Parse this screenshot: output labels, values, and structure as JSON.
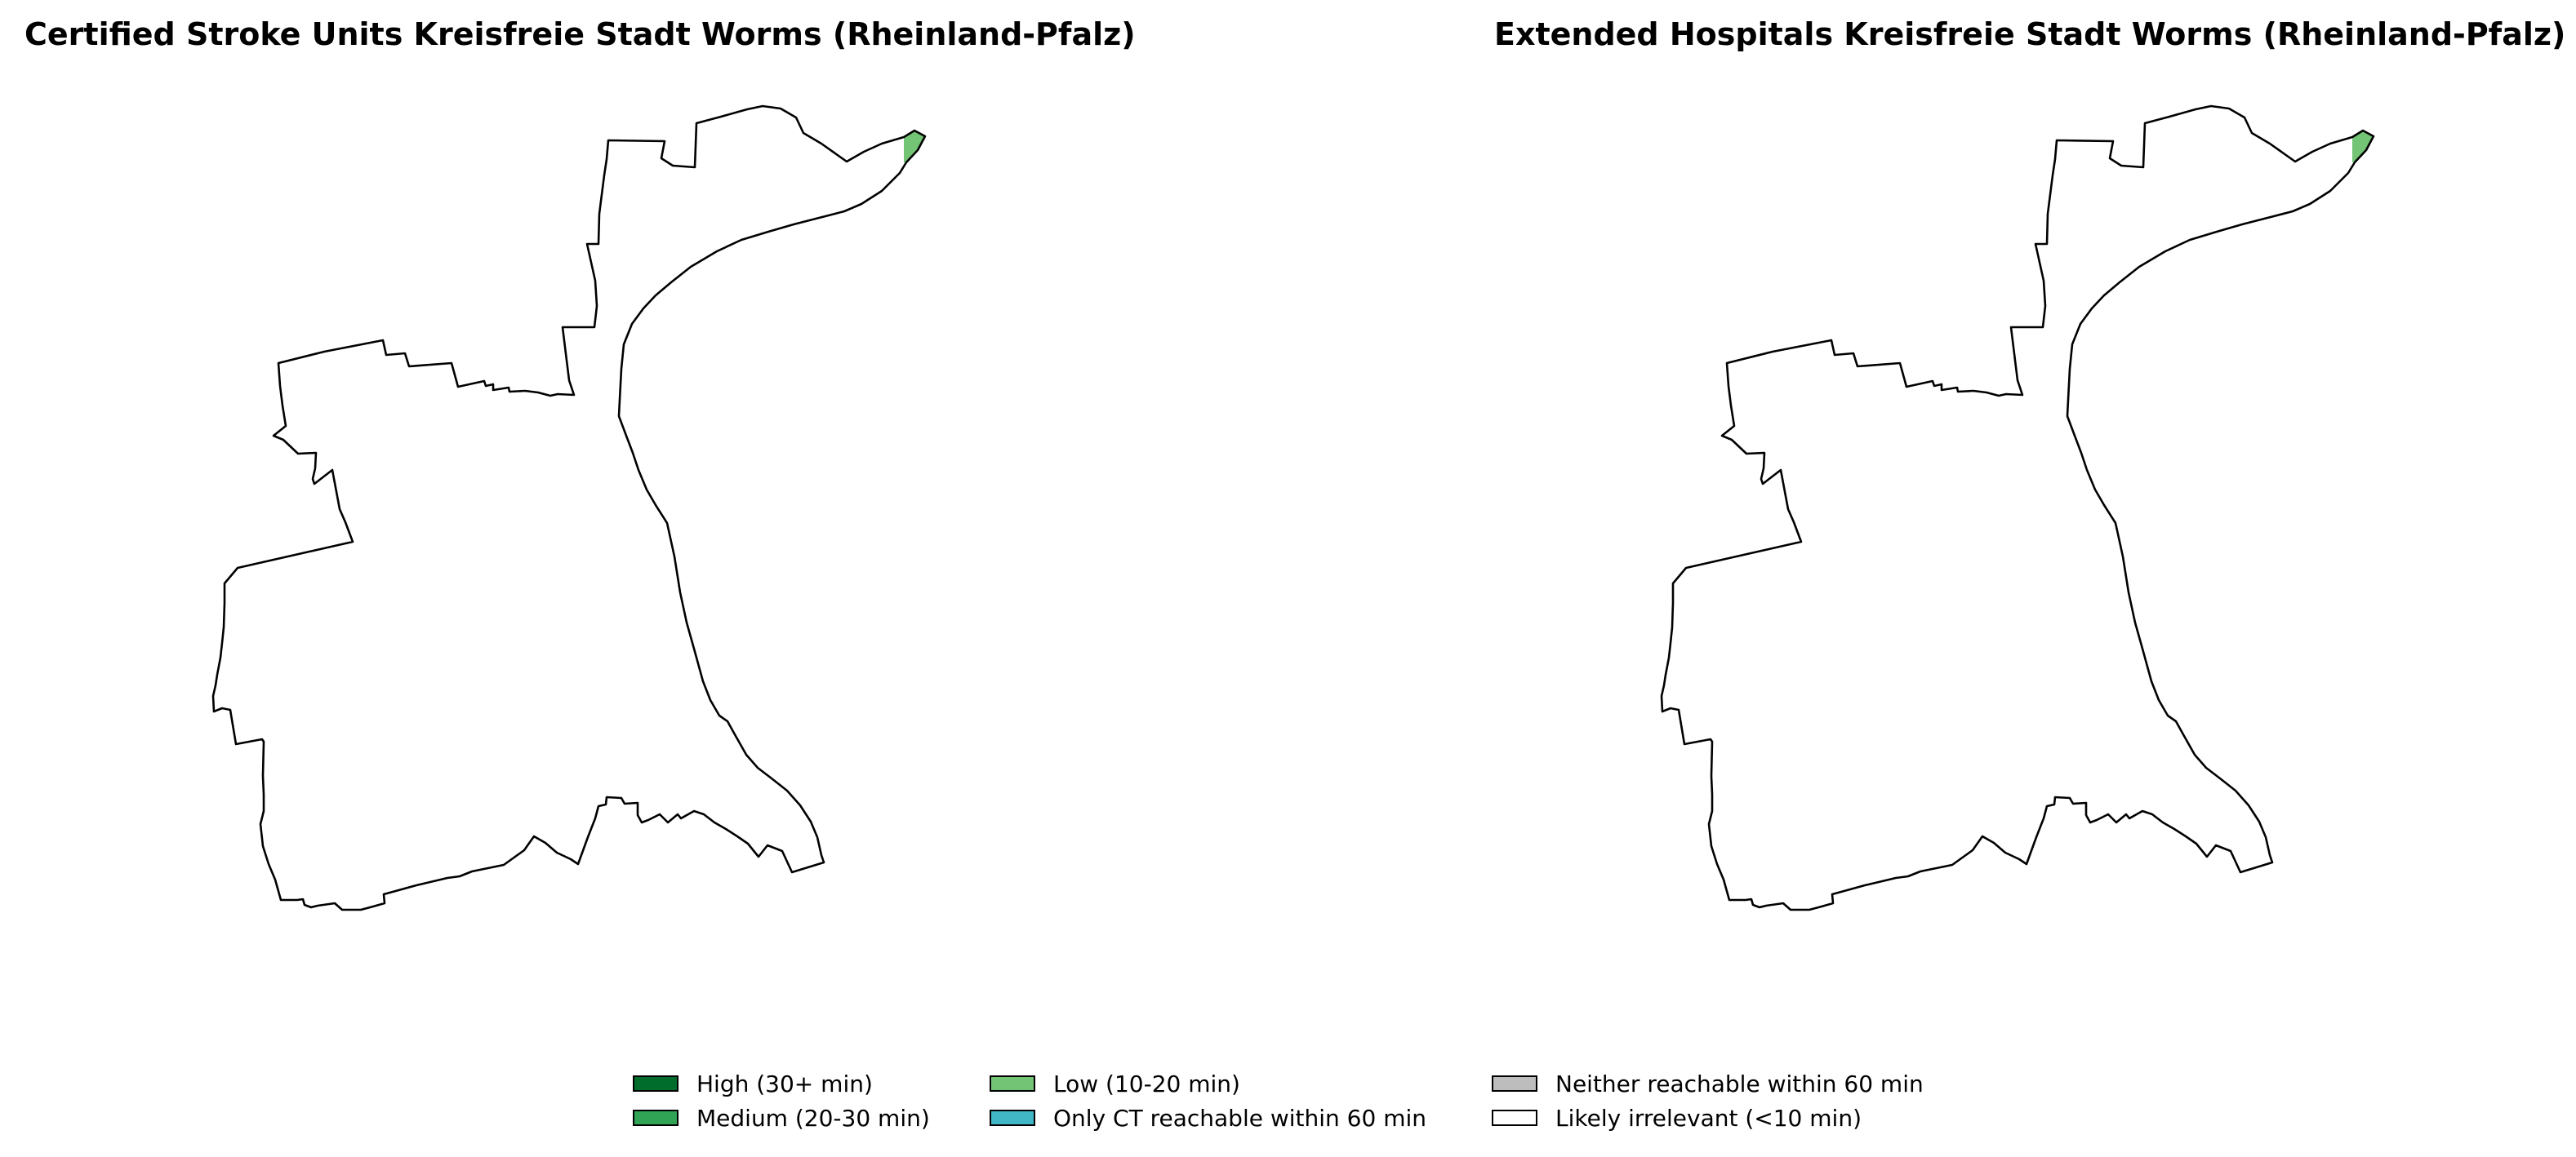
{
  "panels": [
    {
      "title": "Certified Stroke Units Kreisfreie Stadt Worms (Rheinland-Pfalz)"
    },
    {
      "title": "Extended Hospitals Kreisfreie Stadt Worms (Rheinland-Pfalz)"
    }
  ],
  "legend": {
    "items": [
      {
        "label": "High (30+ min)",
        "color": "#006d2c"
      },
      {
        "label": "Medium (20-30 min)",
        "color": "#31a354"
      },
      {
        "label": "Low (10-20 min)",
        "color": "#74c476"
      },
      {
        "label": "Only CT reachable within 60 min",
        "color": "#41b6c4"
      },
      {
        "label": "Neither reachable within 60 min",
        "color": "#bdbdbd"
      },
      {
        "label": "Likely irrelevant (<10 min)",
        "color": "#ffffff"
      }
    ]
  },
  "map": {
    "outline_color": "#000000",
    "highlight_color": "#74c476",
    "highlight_category": "Low (10-20 min)"
  }
}
